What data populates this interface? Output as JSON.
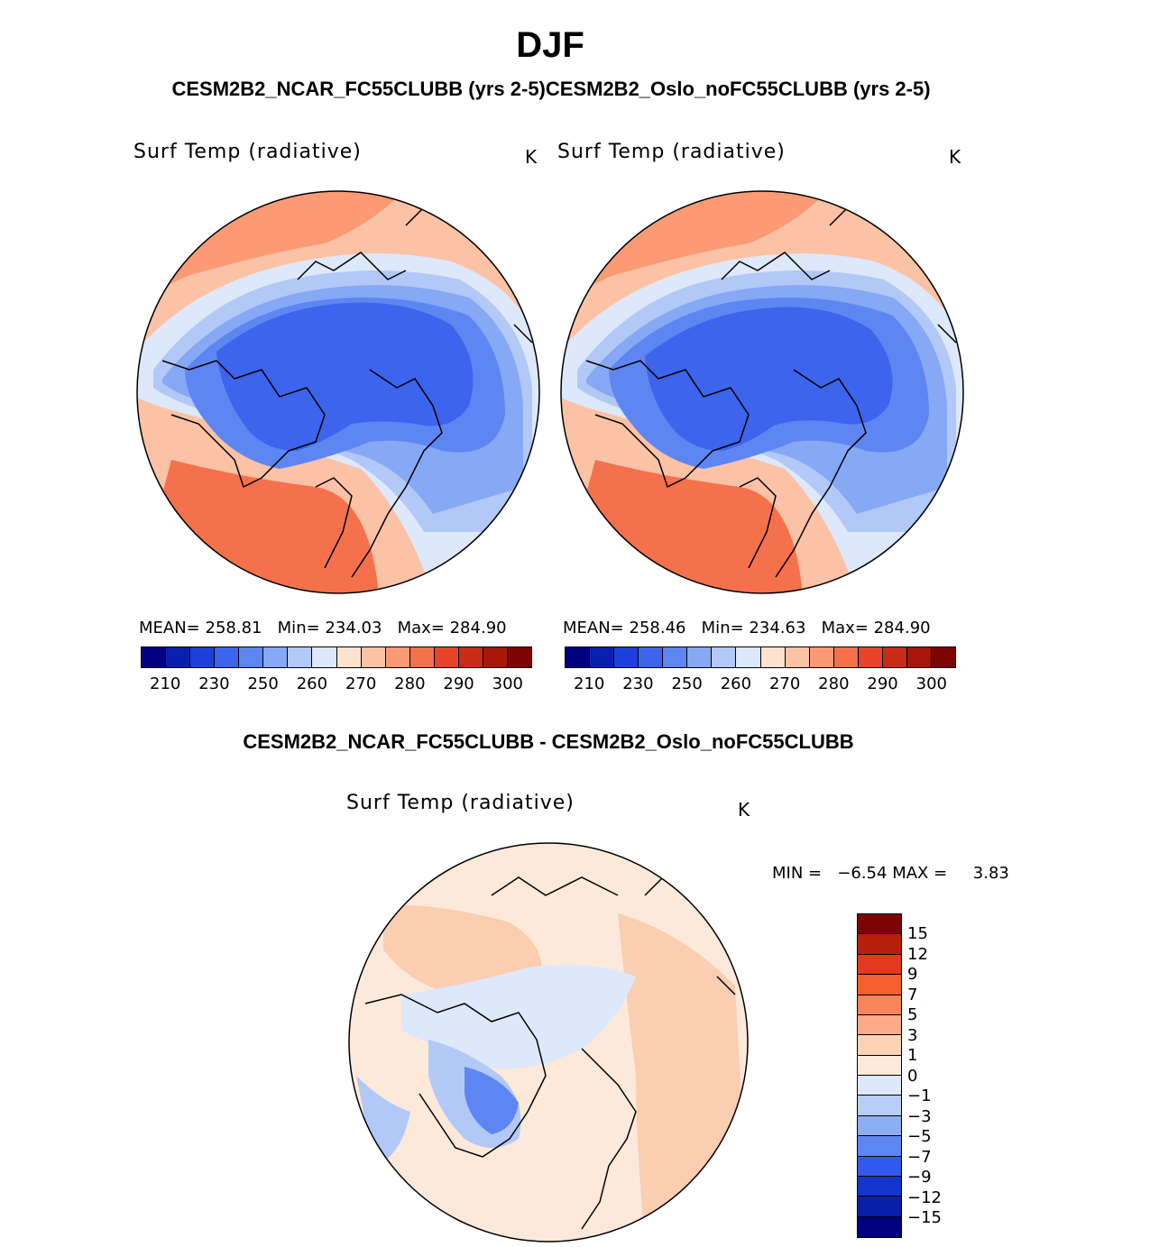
{
  "header": {
    "season": "DJF",
    "models_line": "CESM2B2_NCAR_FC55CLUBB (yrs 2-5)CESM2B2_Oslo_noFC55CLUBB (yrs 2-5)",
    "diff_line": "CESM2B2_NCAR_FC55CLUBB - CESM2B2_Oslo_noFC55CLUBB"
  },
  "panels": [
    {
      "title": "Surf Temp (radiative)",
      "unit": "K",
      "mean_label": "MEAN=",
      "mean": "258.81",
      "min_label": "Min=",
      "min": "234.03",
      "max_label": "Max=",
      "max": "284.90"
    },
    {
      "title": "Surf Temp (radiative)",
      "unit": "K",
      "mean_label": "MEAN=",
      "mean": "258.46",
      "min_label": "Min=",
      "min": "234.63",
      "max_label": "Max=",
      "max": "284.90"
    }
  ],
  "diff_panel": {
    "title": "Surf Temp (radiative)",
    "unit": "K",
    "min_label": "MIN =",
    "min": "−6.54",
    "max_label": "MAX =",
    "max": "3.83"
  },
  "abs_colorbar": {
    "labels": [
      "210",
      "230",
      "250",
      "260",
      "270",
      "280",
      "290",
      "300"
    ],
    "colors": [
      "#000080",
      "#0a1fb0",
      "#1f3fdc",
      "#3c64ec",
      "#5e86f2",
      "#86a8f5",
      "#b2c8f7",
      "#dde8fa",
      "#fde3cf",
      "#fcc2a5",
      "#fb9a74",
      "#f5714c",
      "#e9432a",
      "#c92b18",
      "#a7170c",
      "#7c0404"
    ]
  },
  "diff_colorbar": {
    "labels": [
      "15",
      "12",
      "9",
      "7",
      "5",
      "3",
      "1",
      "0",
      "−1",
      "−3",
      "−5",
      "−7",
      "−9",
      "−12",
      "−15"
    ],
    "colors": [
      "#7c0404",
      "#b8200e",
      "#e23a1f",
      "#f4602c",
      "#f8845a",
      "#fbab85",
      "#fdd2b6",
      "#fde9da",
      "#dde8fa",
      "#b8cdf8",
      "#8eaef4",
      "#5e86f2",
      "#2f5aec",
      "#1434cc",
      "#0a1fa8",
      "#000080"
    ]
  },
  "map_fill_colors": {
    "deep_blue": "#3c64ec",
    "mid_blue": "#5e86f2",
    "light_blue": "#86a8f5",
    "pale_blue": "#b2c8f7",
    "icy": "#dde8fa",
    "pale_orange": "#fcc2a5",
    "orange": "#fb9a74",
    "dark_orange": "#f5714c",
    "diff_bg": "#fde9da",
    "diff_orange": "#fbcdb1"
  }
}
